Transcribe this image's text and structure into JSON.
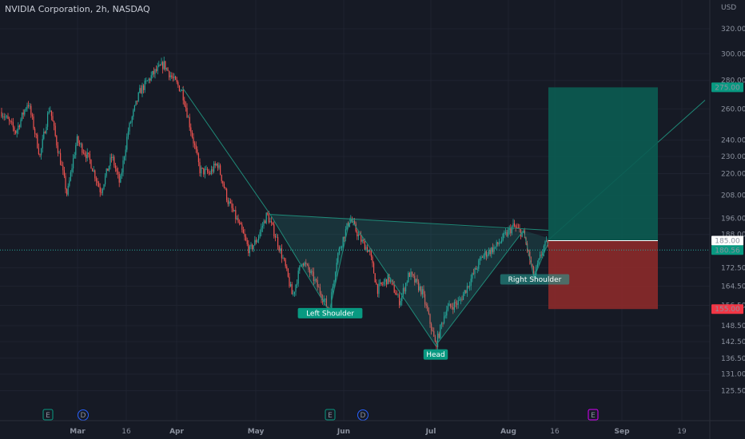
{
  "header": {
    "title": "NVIDIA Corporation, 2h, NASDAQ"
  },
  "currency": "USD",
  "chart_data": {
    "type": "candlestick",
    "title": "NVIDIA Corporation, 2h, NASDAQ",
    "y_scale": "log",
    "ylim": [
      122,
      340
    ],
    "y_ticks": [
      {
        "value": 320,
        "label": "320.00"
      },
      {
        "value": 300,
        "label": "300.00"
      },
      {
        "value": 280,
        "label": "280.00"
      },
      {
        "value": 260,
        "label": "260.00"
      },
      {
        "value": 240,
        "label": "240.00"
      },
      {
        "value": 230,
        "label": "230.00"
      },
      {
        "value": 220,
        "label": "220.00"
      },
      {
        "value": 208,
        "label": "208.00"
      },
      {
        "value": 196,
        "label": "196.00"
      },
      {
        "value": 188,
        "label": "188.00"
      },
      {
        "value": 172.5,
        "label": "172.50"
      },
      {
        "value": 164.5,
        "label": "164.50"
      },
      {
        "value": 156.5,
        "label": "156.50"
      },
      {
        "value": 148.5,
        "label": "148.50"
      },
      {
        "value": 142.5,
        "label": "142.50"
      },
      {
        "value": 136.5,
        "label": "136.50"
      },
      {
        "value": 131,
        "label": "131.00"
      },
      {
        "value": 125.5,
        "label": "125.50"
      }
    ],
    "x_ticks": [
      {
        "label": "Mar",
        "bold": true
      },
      {
        "label": "16",
        "bold": false
      },
      {
        "label": "Apr",
        "bold": true
      },
      {
        "label": "May",
        "bold": true
      },
      {
        "label": "Jun",
        "bold": true
      },
      {
        "label": "Jul",
        "bold": true
      },
      {
        "label": "Aug",
        "bold": true
      },
      {
        "label": "16",
        "bold": false
      },
      {
        "label": "Sep",
        "bold": true
      },
      {
        "label": "19",
        "bold": false
      }
    ],
    "price_tags": [
      {
        "label": "275.00",
        "value": 275,
        "color": "#089981"
      },
      {
        "label": "185.00",
        "value": 185,
        "color": "#ffffff"
      },
      {
        "label": "180.56",
        "value": 180.56,
        "color": "#089981"
      },
      {
        "label": "155.00",
        "value": 155,
        "color": "#f23645"
      }
    ],
    "current_price": 180.56,
    "trade": {
      "target": 275,
      "entry": 185,
      "stop": 155
    },
    "pattern_labels": [
      "Left Shoulder",
      "Head",
      "Right Shoulder"
    ],
    "event_markers": [
      "E",
      "D",
      "E",
      "D",
      "E"
    ],
    "colors": {
      "up": "#26a69a",
      "down": "#ef5350",
      "pattern": "#1f8a78",
      "profit": "#0b5c52",
      "loss": "#8b2a2a"
    }
  }
}
